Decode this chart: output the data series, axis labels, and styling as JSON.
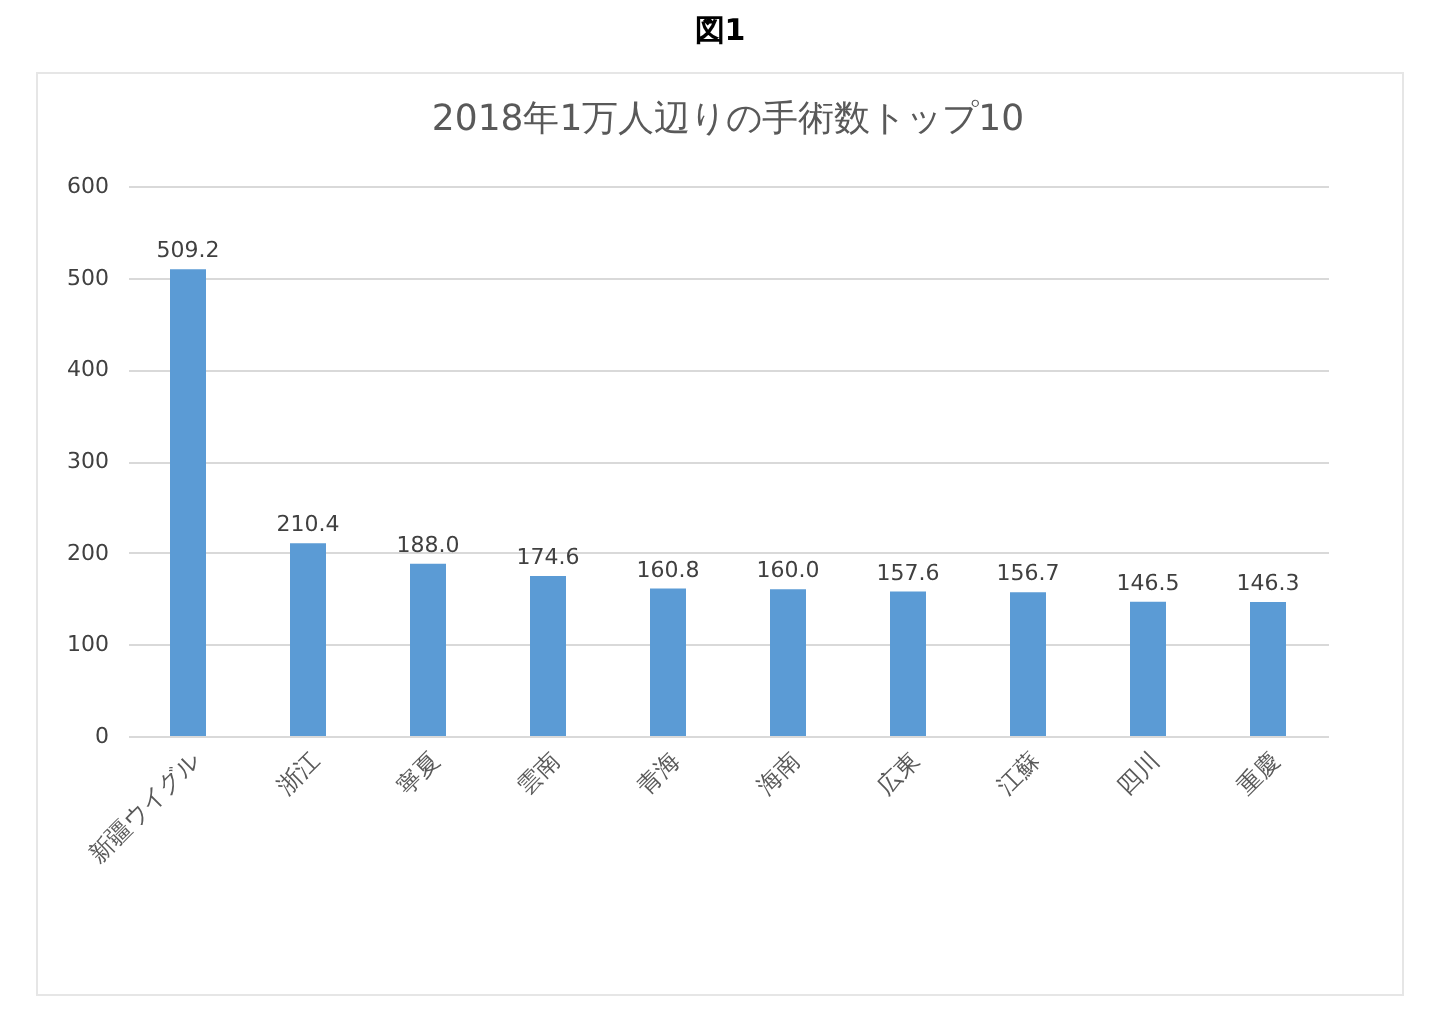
{
  "chart_data": {
    "type": "bar",
    "title": "2018年1万人辺りの手術数トップ10",
    "annotations": [
      "図1"
    ],
    "categories": [
      "新疆ウイグル",
      "浙江",
      "寧夏",
      "雲南",
      "青海",
      "海南",
      "広東",
      "江蘇",
      "四川",
      "重慶"
    ],
    "values": [
      509.2,
      210.4,
      188.0,
      174.6,
      160.8,
      160.0,
      157.6,
      156.7,
      146.5,
      146.3
    ],
    "value_labels": [
      "509.2",
      "210.4",
      "188.0",
      "174.6",
      "160.8",
      "160.0",
      "157.6",
      "156.7",
      "146.5",
      "146.3"
    ],
    "color": "#5b9bd5",
    "ylim": [
      0,
      600
    ],
    "yticks": [
      0,
      100,
      200,
      300,
      400,
      500,
      600
    ],
    "grid": "y"
  }
}
